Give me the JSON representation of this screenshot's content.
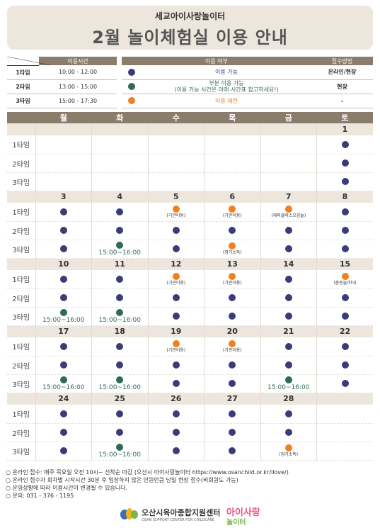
{
  "header": {
    "subtitle": "세교아이사랑놀이터",
    "title": "2월 놀이체험실 이용 안내"
  },
  "colors": {
    "available": "#3a3c7a",
    "partial": "#2e6b55",
    "limited": "#f07f1e"
  },
  "time_table": {
    "header": "이용시간",
    "rows": [
      {
        "label": "1타임",
        "time": "10:00 - 12:00"
      },
      {
        "label": "2타임",
        "time": "13:00 - 15:00"
      },
      {
        "label": "3타임",
        "time": "15:00 - 17:30"
      }
    ]
  },
  "status_table": {
    "header_status": "이용 여부",
    "header_method": "접수방법",
    "rows": [
      {
        "icon": "navy-dot-icon",
        "color": "#3a3c7a",
        "text": "이용 가능",
        "text2": "",
        "method": "온라인/현장"
      },
      {
        "icon": "green-dot-icon",
        "color": "#2e6b55",
        "text": "부분 이용 가능",
        "text2": "(이용 가능 시간은 아래 시간표 참고하세요!)",
        "method": "현장"
      },
      {
        "icon": "orange-dot-icon",
        "color": "#f07f1e",
        "text": "이용 제한",
        "text2": "",
        "method": "-"
      }
    ]
  },
  "calendar": {
    "weekdays": [
      "월",
      "화",
      "수",
      "목",
      "금",
      "토"
    ],
    "slot_labels": [
      "1타임",
      "2타임",
      "3타임"
    ],
    "weeks": [
      {
        "dates": [
          "",
          "",
          "",
          "",
          "",
          "1"
        ],
        "slots": [
          [
            null,
            null,
            null,
            null,
            null,
            {
              "s": "a"
            }
          ],
          [
            null,
            null,
            null,
            null,
            null,
            {
              "s": "a"
            }
          ],
          [
            null,
            null,
            null,
            null,
            null,
            {
              "s": "a"
            }
          ]
        ]
      },
      {
        "dates": [
          "3",
          "4",
          "5",
          "6",
          "7",
          "8"
        ],
        "slots": [
          [
            {
              "s": "a"
            },
            {
              "s": "a"
            },
            {
              "s": "l",
              "note": "(기관이용)"
            },
            {
              "s": "l",
              "note": "(기관이용)"
            },
            {
              "s": "l",
              "note": "(캐피클러스오감놀)"
            },
            {
              "s": "a"
            }
          ],
          [
            {
              "s": "a"
            },
            {
              "s": "a"
            },
            {
              "s": "a"
            },
            {
              "s": "a"
            },
            {
              "s": "a"
            },
            {
              "s": "a"
            }
          ],
          [
            {
              "s": "a"
            },
            {
              "s": "p",
              "time": "15:00~16:00"
            },
            {
              "s": "a"
            },
            {
              "s": "l",
              "note": "(정기소독)"
            },
            {
              "s": "a"
            },
            {
              "s": "a"
            }
          ]
        ]
      },
      {
        "dates": [
          "10",
          "11",
          "12",
          "13",
          "14",
          "15"
        ],
        "slots": [
          [
            {
              "s": "a"
            },
            {
              "s": "a"
            },
            {
              "s": "l",
              "note": "(기관이용)"
            },
            {
              "s": "l",
              "note": "(기관이용)"
            },
            {
              "s": "a"
            },
            {
              "s": "l",
              "note": "(충동놀이터)"
            }
          ],
          [
            {
              "s": "a"
            },
            {
              "s": "a"
            },
            {
              "s": "a"
            },
            {
              "s": "a"
            },
            {
              "s": "a"
            },
            {
              "s": "a"
            }
          ],
          [
            {
              "s": "p",
              "time": "15:00~16:00"
            },
            {
              "s": "p",
              "time": "15:00~16:00"
            },
            {
              "s": "a"
            },
            {
              "s": "a"
            },
            {
              "s": "a"
            },
            {
              "s": "a"
            }
          ]
        ]
      },
      {
        "dates": [
          "17",
          "18",
          "19",
          "20",
          "21",
          "22"
        ],
        "slots": [
          [
            {
              "s": "a"
            },
            {
              "s": "a"
            },
            {
              "s": "l",
              "note": "(기관이용)"
            },
            {
              "s": "l",
              "note": "(기관이용)"
            },
            {
              "s": "a"
            },
            {
              "s": "a"
            }
          ],
          [
            {
              "s": "a"
            },
            {
              "s": "a"
            },
            {
              "s": "a"
            },
            {
              "s": "a"
            },
            {
              "s": "a"
            },
            {
              "s": "a"
            }
          ],
          [
            {
              "s": "p",
              "time": "15:00~16:00"
            },
            {
              "s": "p",
              "time": "15:00~16:00"
            },
            {
              "s": "a"
            },
            {
              "s": "a"
            },
            {
              "s": "p",
              "time": "15:00~16:00"
            },
            {
              "s": "a"
            }
          ]
        ]
      },
      {
        "dates": [
          "24",
          "25",
          "26",
          "27",
          "28",
          ""
        ],
        "slots": [
          [
            {
              "s": "a"
            },
            {
              "s": "a"
            },
            {
              "s": "a"
            },
            {
              "s": "a"
            },
            {
              "s": "a"
            },
            null
          ],
          [
            {
              "s": "a"
            },
            {
              "s": "a"
            },
            {
              "s": "a"
            },
            {
              "s": "a"
            },
            {
              "s": "a"
            },
            null
          ],
          [
            {
              "s": "a"
            },
            {
              "s": "p",
              "time": "15:00~16:00"
            },
            {
              "s": "a"
            },
            {
              "s": "a"
            },
            {
              "s": "l",
              "note": "(정기소독)"
            },
            null
          ]
        ]
      }
    ]
  },
  "notes": [
    "○ 온라인 접수: 매주 목요일 오전 10시~ 선착순 마감 (오산시 아이사랑놀이터 https://www.osanchild.or.kr/ilove/)",
    "○ 온라인 접수자 회차별 시작시간 30분 후 입장하지 않은 인원만큼 당일 현장 접수(비회원도 가능)",
    "○ 운영상황에 따라 이용시간이 변경될 수 있습니다.",
    "○ 문의: 031 - 376 - 1195"
  ],
  "logos": {
    "org_name": "오산시육아종합지원센터",
    "org_name_en": "OSAN SUPPORT CENTER FOR CHILDCARE",
    "brand_line1": "아이사랑",
    "brand_line2": "놀이터"
  }
}
